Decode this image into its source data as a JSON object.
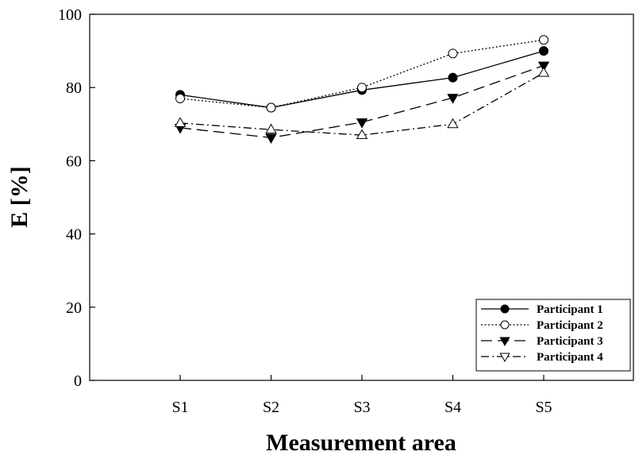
{
  "chart_data": {
    "type": "line",
    "xlabel": "Measurement area",
    "ylabel": "E [%]",
    "categories": [
      "S1",
      "S2",
      "S3",
      "S4",
      "S5"
    ],
    "ylim": [
      0,
      100
    ],
    "yticks": [
      0,
      20,
      40,
      60,
      80,
      100
    ],
    "grid": false,
    "legend_position": "bottom-right",
    "series": [
      {
        "name": "Participant 1",
        "values": [
          78,
          74.5,
          79.3,
          82.7,
          90
        ],
        "marker": "circle-filled",
        "line": "solid"
      },
      {
        "name": "Participant 2",
        "values": [
          77,
          74.5,
          80,
          89.3,
          93
        ],
        "marker": "circle-open",
        "line": "dotted"
      },
      {
        "name": "Participant 3",
        "values": [
          69,
          66.3,
          70.5,
          77.2,
          86
        ],
        "marker": "triangle-down-filled",
        "line": "dashed"
      },
      {
        "name": "Participant 4",
        "values": [
          70.3,
          68.5,
          67,
          70,
          84
        ],
        "marker": "triangle-up-open",
        "line": "dash-dot"
      }
    ]
  }
}
